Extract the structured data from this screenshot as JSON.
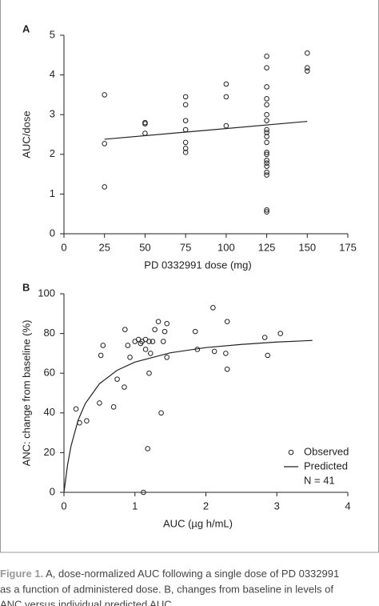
{
  "chart_data": [
    {
      "type": "scatter",
      "panel_label": "A",
      "x_label": "PD 0332991 dose (mg)",
      "y_label": "AUC/dose",
      "x": [
        25,
        25,
        25,
        50,
        50,
        50,
        75,
        75,
        75,
        75,
        75,
        75,
        75,
        100,
        100,
        100,
        125,
        125,
        125,
        125,
        125,
        125,
        125,
        125,
        125,
        125,
        125,
        125,
        125,
        125,
        125,
        125,
        125,
        125,
        125,
        125,
        150,
        150,
        150
      ],
      "values": [
        3.5,
        2.27,
        1.18,
        2.8,
        2.77,
        2.53,
        3.45,
        3.25,
        2.85,
        2.62,
        2.3,
        2.15,
        2.05,
        3.77,
        3.45,
        2.72,
        4.47,
        4.18,
        3.7,
        3.4,
        3.25,
        3.0,
        2.85,
        2.62,
        2.55,
        2.45,
        2.3,
        2.05,
        2.0,
        1.85,
        1.78,
        1.7,
        1.55,
        1.48,
        0.6,
        0.55,
        4.55,
        4.18,
        4.1
      ],
      "fit": {
        "x": [
          25,
          150
        ],
        "values": [
          2.38,
          2.83
        ]
      },
      "xlim": [
        0,
        175
      ],
      "xticks": [
        0,
        25,
        50,
        75,
        100,
        125,
        150,
        175
      ],
      "ylim": [
        0,
        5
      ],
      "yticks": [
        0,
        1,
        2,
        3,
        4,
        5
      ]
    },
    {
      "type": "scatter",
      "panel_label": "B",
      "x_label": "AUC (µg h/mL)",
      "y_label": "ANC: change from baseline (%)",
      "series": [
        {
          "name": "Observed",
          "type": "scatter",
          "x": [
            0.17,
            0.22,
            0.32,
            0.5,
            0.52,
            0.55,
            0.7,
            0.75,
            0.85,
            0.86,
            0.9,
            0.93,
            1.0,
            1.05,
            1.08,
            1.1,
            1.12,
            1.15,
            1.15,
            1.18,
            1.2,
            1.2,
            1.22,
            1.25,
            1.28,
            1.33,
            1.37,
            1.4,
            1.42,
            1.45,
            1.45,
            1.85,
            1.88,
            2.1,
            2.12,
            2.28,
            2.3,
            2.3,
            2.83,
            2.87,
            3.05
          ],
          "values": [
            42,
            35,
            36,
            45,
            69,
            74,
            43,
            57,
            53,
            82,
            74,
            68,
            76,
            77,
            75,
            76,
            0,
            77,
            72,
            22,
            60,
            76,
            70,
            76,
            82,
            86,
            40,
            76,
            81,
            85,
            68,
            81,
            72,
            93,
            71,
            70,
            86,
            62,
            78,
            69,
            80
          ]
        },
        {
          "name": "Predicted",
          "type": "line",
          "x": [
            0,
            0.05,
            0.1,
            0.2,
            0.3,
            0.5,
            0.75,
            1,
            1.5,
            2,
            2.5,
            3,
            3.5
          ],
          "values": [
            0,
            13.7,
            23.4,
            36.4,
            44.7,
            54.7,
            61.5,
            65.6,
            70.3,
            72.9,
            74.5,
            75.7,
            76.5
          ]
        }
      ],
      "annotation": "N = 41",
      "xlim": [
        0,
        4
      ],
      "xticks": [
        0,
        1,
        2,
        3,
        4
      ],
      "ylim": [
        0,
        100
      ],
      "yticks": [
        0,
        20,
        40,
        60,
        80,
        100
      ]
    }
  ],
  "caption": {
    "label": "Figure 1.",
    "lines": [
      "A, dose-normalized AUC following a single dose of PD 0332991",
      "as a function of administered dose. B, changes from baseline in levels of",
      "ANC versus individual predicted AUC."
    ]
  }
}
